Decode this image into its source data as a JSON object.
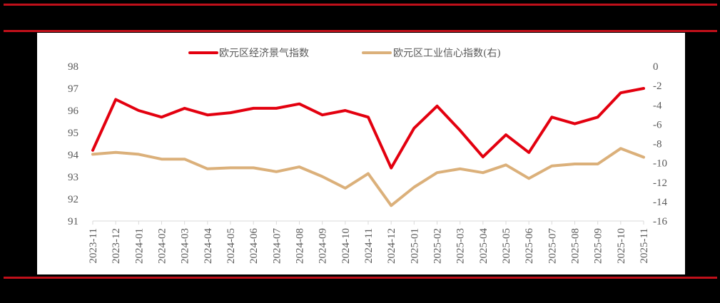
{
  "colors": {
    "background": "#000000",
    "rule": "#c0101a",
    "panel": "#ffffff",
    "series1": "#e3000f",
    "series2": "#dbb07a",
    "axis_text": "#595959",
    "axis_line": "#d9d9d9"
  },
  "chart_data": {
    "type": "line",
    "title": "",
    "legend_position": "top",
    "grid": false,
    "x": [
      "2023-11",
      "2023-12",
      "2024-01",
      "2024-02",
      "2024-03",
      "2024-04",
      "2024-05",
      "2024-06",
      "2024-07",
      "2024-08",
      "2024-09",
      "2024-10",
      "2024-11",
      "2024-12",
      "2025-01",
      "2025-02",
      "2025-03",
      "2025-04",
      "2025-05",
      "2025-06",
      "2025-07",
      "2025-08",
      "2025-09",
      "2025-10",
      "2025-11"
    ],
    "series": [
      {
        "name": "欧元区经济景气指数",
        "axis": "left",
        "color": "#e3000f",
        "values": [
          94.2,
          96.5,
          96.0,
          95.7,
          96.1,
          95.8,
          95.9,
          96.1,
          96.1,
          96.3,
          95.8,
          96.0,
          95.7,
          93.4,
          95.2,
          96.2,
          95.1,
          93.9,
          94.9,
          94.1,
          95.7,
          95.4,
          95.7,
          96.8,
          97.0
        ]
      },
      {
        "name": "欧元区工业信心指数(右)",
        "axis": "right",
        "color": "#dbb07a",
        "values": [
          -9.1,
          -8.9,
          -9.1,
          -9.6,
          -9.6,
          -10.6,
          -10.5,
          -10.5,
          -10.9,
          -10.4,
          -11.4,
          -12.6,
          -11.1,
          -14.4,
          -12.5,
          -11.0,
          -10.6,
          -11.0,
          -10.2,
          -11.6,
          -10.3,
          -10.1,
          -10.1,
          -8.5,
          -9.4
        ]
      }
    ],
    "left_axis": {
      "ylim": [
        91,
        98
      ],
      "ticks": [
        "91",
        "92",
        "93",
        "94",
        "95",
        "96",
        "97",
        "98"
      ]
    },
    "right_axis": {
      "ylim": [
        -16,
        0
      ],
      "ticks": [
        "-16",
        "-14",
        "-12",
        "-10",
        "-8",
        "-6",
        "-4",
        "-2",
        "0"
      ]
    },
    "xlabel": "",
    "ylabel": ""
  }
}
